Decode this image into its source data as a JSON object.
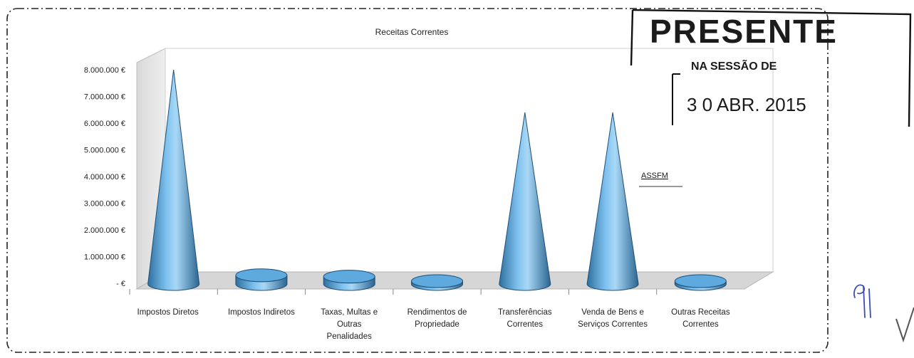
{
  "chart_data": {
    "type": "bar",
    "shape": "cone",
    "title": "Receitas Correntes",
    "xlabel": "",
    "ylabel": "",
    "categories": [
      [
        "Impostos Diretos"
      ],
      [
        "Impostos Indiretos"
      ],
      [
        "Taxas, Multas e",
        "Outras",
        "Penalidades"
      ],
      [
        "Rendimentos de",
        "Propriedade"
      ],
      [
        "Transferências",
        "Correntes"
      ],
      [
        "Venda de Bens e",
        "Serviços Correntes"
      ],
      [
        "Outras Receitas",
        "Correntes"
      ]
    ],
    "values": [
      8000000,
      300000,
      250000,
      50000,
      6400000,
      6400000,
      50000
    ],
    "ylim": [
      0,
      8000000
    ],
    "yticks": [
      {
        "value": 0,
        "label": "- €"
      },
      {
        "value": 1000000,
        "label": "1.000.000 €"
      },
      {
        "value": 2000000,
        "label": "2.000.000 €"
      },
      {
        "value": 3000000,
        "label": "3.000.000 €"
      },
      {
        "value": 4000000,
        "label": "4.000.000 €"
      },
      {
        "value": 5000000,
        "label": "5.000.000 €"
      },
      {
        "value": 6000000,
        "label": "6.000.000 €"
      },
      {
        "value": 7000000,
        "label": "7.000.000 €"
      },
      {
        "value": 8000000,
        "label": "8.000.000 €"
      }
    ],
    "grid": false,
    "bar_color": "#5ea9dd"
  },
  "stamp": {
    "headline": "PRESENTE",
    "subline": "NA SESSÃO DE",
    "date": "3 0  ABR. 2015",
    "tag": "ASSFM"
  }
}
